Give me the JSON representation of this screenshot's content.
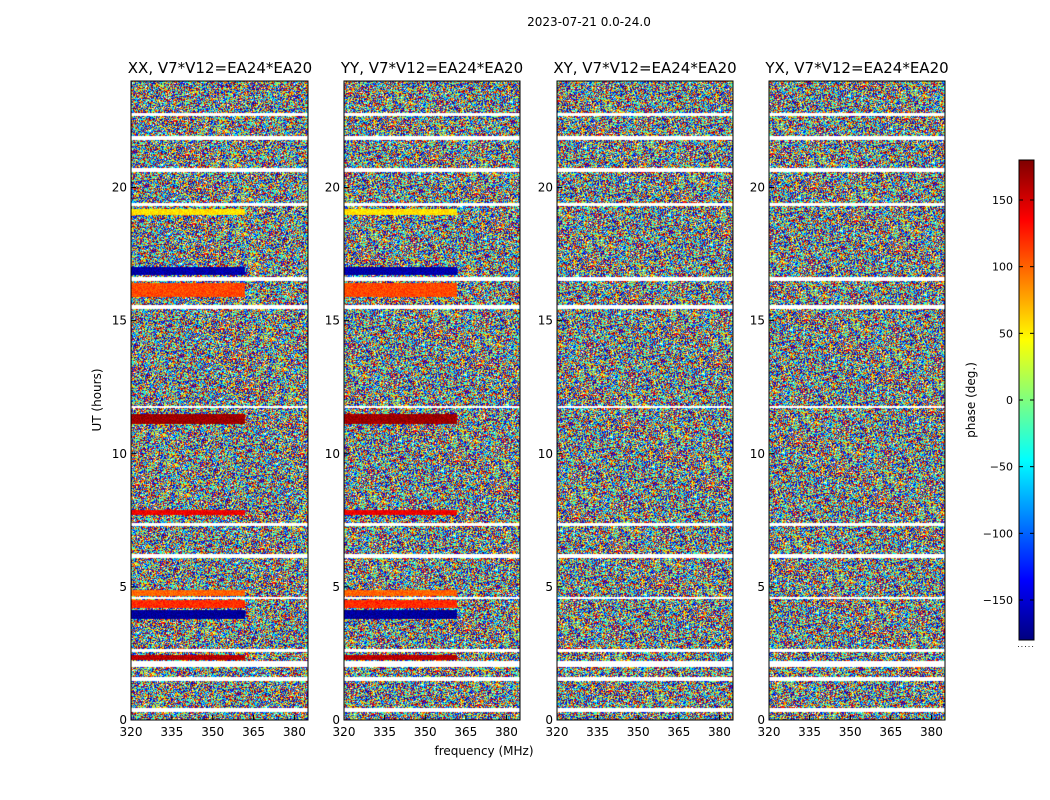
{
  "chart_data": {
    "type": "heatmap",
    "suptitle": "2023-07-21 0.0-24.0",
    "xlabel": "frequency (MHz)",
    "ylabel": "UT (hours)",
    "colorbar_label": "phase (deg.)",
    "colorbar_range": [
      -180,
      180
    ],
    "colorbar_ticks": [
      150,
      100,
      50,
      0,
      -50,
      -100,
      -150
    ],
    "colorbar_tick_labels": [
      "150",
      "100",
      "50",
      "0",
      "−50",
      "−100",
      "−150"
    ],
    "colormap": "jet",
    "colormap_stops": [
      "#00007f",
      "#0000ff",
      "#007fff",
      "#00ffff",
      "#7fff7f",
      "#ffff00",
      "#ff7f00",
      "#ff0000",
      "#7f0000"
    ],
    "xlim": [
      320,
      385
    ],
    "ylim": [
      0,
      24
    ],
    "xticks": [
      320,
      335,
      350,
      365,
      380
    ],
    "yticks": [
      0,
      5,
      10,
      15,
      20
    ],
    "panels": [
      {
        "title": "XX, V7*V12=EA24*EA20",
        "pol": "XX"
      },
      {
        "title": "YY, V7*V12=EA24*EA20",
        "pol": "YY"
      },
      {
        "title": "XY, V7*V12=EA24*EA20",
        "pol": "XY"
      },
      {
        "title": "YX, V7*V12=EA24*EA20",
        "pol": "YX"
      }
    ],
    "flagged_hours": [
      [
        0.3,
        0.45
      ],
      [
        1.45,
        1.6
      ],
      [
        2.0,
        2.2
      ],
      [
        2.55,
        2.65
      ],
      [
        4.55,
        4.62
      ],
      [
        6.1,
        6.25
      ],
      [
        7.3,
        7.4
      ],
      [
        11.7,
        11.8
      ],
      [
        15.45,
        15.6
      ],
      [
        16.5,
        16.62
      ],
      [
        19.3,
        19.42
      ],
      [
        20.6,
        20.75
      ],
      [
        21.8,
        21.95
      ],
      [
        22.7,
        22.8
      ]
    ],
    "coherent_bands": [
      {
        "hours": [
          2.25,
          2.45
        ],
        "phase_deg": 160,
        "pols": [
          "XX",
          "YY"
        ]
      },
      {
        "hours": [
          3.8,
          4.15
        ],
        "phase_deg": -170,
        "pols": [
          "XX",
          "YY"
        ]
      },
      {
        "hours": [
          4.2,
          4.5
        ],
        "phase_deg": 120,
        "pols": [
          "XX",
          "YY"
        ]
      },
      {
        "hours": [
          4.65,
          4.9
        ],
        "phase_deg": 100,
        "pols": [
          "XX",
          "YY"
        ]
      },
      {
        "hours": [
          7.7,
          7.9
        ],
        "phase_deg": 140,
        "pols": [
          "XX",
          "YY"
        ]
      },
      {
        "hours": [
          11.1,
          11.5
        ],
        "phase_deg": 170,
        "pols": [
          "XX",
          "YY"
        ]
      },
      {
        "hours": [
          15.9,
          16.4
        ],
        "phase_deg": 110,
        "pols": [
          "XX",
          "YY"
        ]
      },
      {
        "hours": [
          16.7,
          17.0
        ],
        "phase_deg": -165,
        "pols": [
          "XX",
          "YY"
        ]
      },
      {
        "hours": [
          18.95,
          19.2
        ],
        "phase_deg": 55,
        "pols": [
          "XX",
          "YY"
        ]
      }
    ],
    "colorbar_dots": "....."
  }
}
